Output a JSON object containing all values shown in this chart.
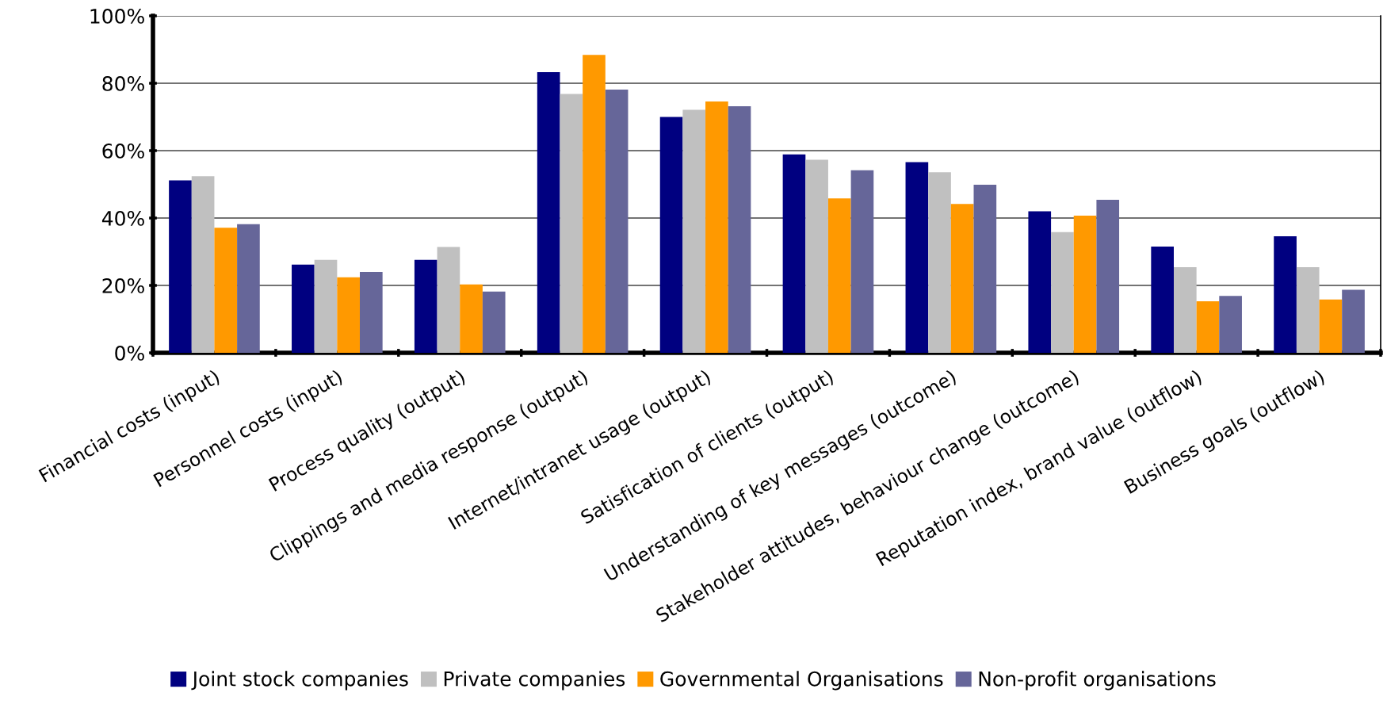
{
  "chart_data": {
    "type": "bar",
    "categories": [
      "Financial costs (input)",
      "Personnel costs (input)",
      "Process quality (output)",
      "Clippings and media response (output)",
      "Internet/intranet usage (output)",
      "Satisfication of clients (output)",
      "Understanding of key messages (outcome)",
      "Stakeholder attitudes, behaviour change (outcome)",
      "Reputation index, brand value (outflow)",
      "Business goals (outflow)"
    ],
    "series": [
      {
        "name": "Joint stock companies",
        "color": "#000080",
        "values": [
          51.2,
          26.2,
          27.6,
          83.3,
          70.0,
          58.9,
          56.6,
          42.0,
          31.5,
          34.6
        ]
      },
      {
        "name": "Private companies",
        "color": "#c0c0c0",
        "values": [
          52.4,
          27.6,
          31.4,
          76.8,
          72.1,
          57.3,
          53.6,
          35.8,
          25.4,
          25.4
        ]
      },
      {
        "name": "Governmental Organisations",
        "color": "#ff9900",
        "values": [
          37.1,
          22.4,
          20.3,
          88.4,
          74.6,
          45.8,
          44.2,
          40.7,
          15.3,
          15.8
        ]
      },
      {
        "name": "Non-profit organisations",
        "color": "#666699",
        "values": [
          38.2,
          24.0,
          18.2,
          78.1,
          73.2,
          54.2,
          49.9,
          45.4,
          16.9,
          18.7
        ]
      }
    ],
    "ylim": [
      0,
      100
    ],
    "yticks": [
      {
        "value": 0,
        "label": "0%"
      },
      {
        "value": 20,
        "label": "20%"
      },
      {
        "value": 40,
        "label": "40%"
      },
      {
        "value": 60,
        "label": "60%"
      },
      {
        "value": 80,
        "label": "80%"
      },
      {
        "value": 100,
        "label": "100%"
      }
    ],
    "grid": "y",
    "legend": "bottom"
  }
}
